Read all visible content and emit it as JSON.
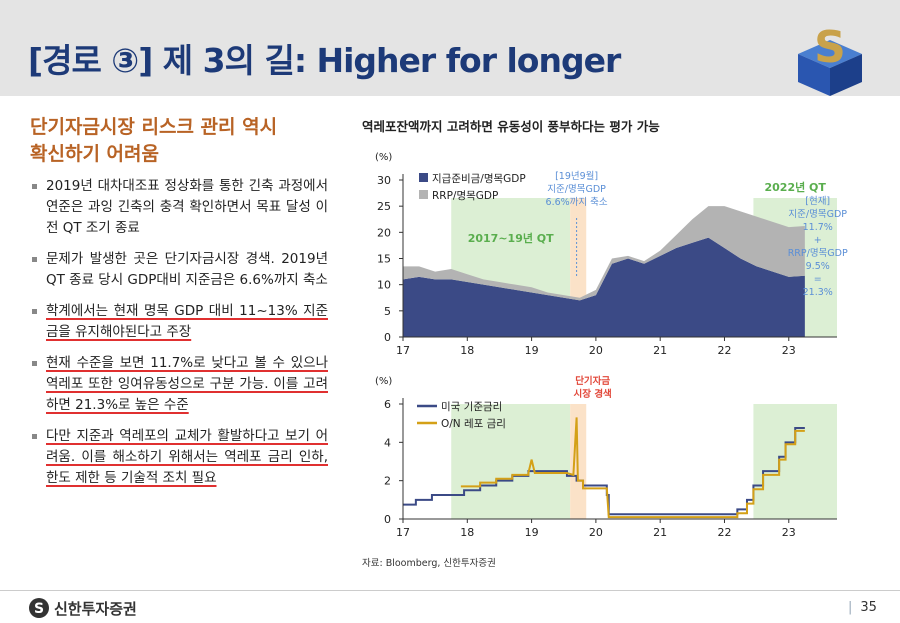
{
  "header": {
    "title": "[경로 ③] 제 3의 길: Higher for longer"
  },
  "left": {
    "heading": [
      "단기자금시장 리스크 관리 역시",
      "확신하기 어려움"
    ],
    "bullets": [
      {
        "text": "2019년 대차대조표 정상화를 통한 긴축 과정에서 연준은 과잉 긴축의 충격 확인하면서 목표 달성 이전 QT 조기 종료",
        "underline": false
      },
      {
        "text": "문제가 발생한 곳은 단기자금시장 경색. 2019년 QT 종료 당시 GDP대비 지준금은 6.6%까지 축소",
        "underline": false
      },
      {
        "text": "학계에서는 현재 명목 GDP 대비 11~13% 지준금을 유지해야된다고 주장",
        "underline": true
      },
      {
        "text": "현재 수준을 보면 11.7%로 낮다고 볼 수 있으나 역레포 또한 잉여유동성으로 구분 가능. 이를 고려하면 21.3%로 높은 수준",
        "underline": true
      },
      {
        "text": "다만 지준과 역레포의 교체가 활발하다고 보기 어려움. 이를 해소하기 위해서는 역레포 금리 인하, 한도 제한 등 기술적 조치 필요",
        "underline": true
      }
    ]
  },
  "chart_data": [
    {
      "type": "area",
      "title": "역레포잔액까지 고려하면 유동성이 풍부하다는 평가 가능",
      "y_label": "(%)",
      "x": [
        17,
        17.25,
        17.5,
        17.75,
        18,
        18.25,
        18.5,
        18.75,
        19,
        19.25,
        19.5,
        19.75,
        20,
        20.25,
        20.5,
        20.75,
        21,
        21.25,
        21.5,
        21.75,
        22,
        22.25,
        22.5,
        22.75,
        23,
        23.25
      ],
      "series": [
        {
          "name": "지급준비금/명목GDP",
          "color": "#3b4a86",
          "values": [
            11,
            11.5,
            11,
            11,
            10.5,
            10,
            9.5,
            9,
            8.5,
            8,
            7.5,
            7,
            8,
            14,
            15,
            14,
            15.5,
            17,
            18,
            19,
            17,
            15,
            13.5,
            12.5,
            11.5,
            11.7
          ]
        },
        {
          "name": "RRP/명목GDP",
          "color": "#b3b3b3",
          "values": [
            2.5,
            2,
            1.5,
            2,
            1.5,
            1,
            1,
            1,
            1,
            0.5,
            0.5,
            0.5,
            1,
            1,
            0.5,
            0.5,
            1,
            2.5,
            4.5,
            6,
            8,
            9,
            9.5,
            9.5,
            9.5,
            9.5
          ]
        }
      ],
      "stacked": true,
      "xlim": [
        17,
        23.75
      ],
      "ylim": [
        0,
        30
      ],
      "xticks": [
        17,
        18,
        19,
        20,
        21,
        22,
        23
      ],
      "yticks": [
        0,
        5,
        10,
        15,
        20,
        25,
        30
      ],
      "spans": [
        {
          "label": "2017~19년 QT",
          "range": [
            17.75,
            19.6
          ],
          "color": "#dcefd4"
        },
        {
          "range": [
            19.6,
            19.85
          ],
          "color": "#fbe2c8"
        },
        {
          "label": "2022년 QT",
          "range": [
            22.45,
            23.75
          ],
          "color": "#dcefd4"
        }
      ],
      "annotations": [
        [
          "[19년9월]",
          "지준/명목GDP",
          "6.6%까지 축소"
        ],
        [
          "[현재]",
          "지준/명목GDP",
          "11.7%",
          "+",
          "RRP/명목GDP",
          "9.5%",
          "=",
          "21.3%"
        ]
      ]
    },
    {
      "type": "line",
      "y_label": "(%)",
      "series": [
        {
          "name": "미국 기준금리",
          "color": "#3b4a86",
          "x": [
            17,
            17.2,
            17.2,
            17.45,
            17.45,
            17.95,
            17.95,
            18.2,
            18.2,
            18.45,
            18.45,
            18.7,
            18.7,
            18.95,
            18.95,
            19.55,
            19.55,
            19.7,
            19.7,
            19.8,
            19.8,
            20.17,
            20.17,
            20.2,
            20.2,
            22.2,
            22.2,
            22.35,
            22.35,
            22.45,
            22.45,
            22.6,
            22.6,
            22.85,
            22.85,
            22.95,
            22.95,
            23.1,
            23.1,
            23.25
          ],
          "values": [
            0.75,
            0.75,
            1,
            1,
            1.25,
            1.25,
            1.5,
            1.5,
            1.75,
            1.75,
            2,
            2,
            2.25,
            2.25,
            2.5,
            2.5,
            2.25,
            2.25,
            2,
            2,
            1.75,
            1.75,
            1.25,
            1.25,
            0.25,
            0.25,
            0.5,
            0.5,
            1,
            1,
            1.75,
            1.75,
            2.5,
            2.5,
            3.25,
            3.25,
            4,
            4,
            4.75,
            4.75
          ]
        },
        {
          "name": "O/N 레포 금리",
          "color": "#d4a017",
          "x": [
            17.9,
            18.2,
            18.2,
            18.45,
            18.45,
            18.7,
            18.7,
            18.95,
            18.95,
            19,
            19.05,
            19.55,
            19.65,
            19.7,
            19.72,
            19.8,
            19.8,
            20.17,
            20.2,
            22.2,
            22.2,
            22.35,
            22.35,
            22.45,
            22.45,
            22.6,
            22.6,
            22.85,
            22.85,
            22.95,
            22.95,
            23.1,
            23.1,
            23.25
          ],
          "values": [
            1.7,
            1.7,
            1.9,
            1.9,
            2.1,
            2.1,
            2.3,
            2.3,
            2.4,
            3.1,
            2.4,
            2.4,
            2.3,
            5.3,
            2,
            2,
            1.6,
            1.6,
            0.1,
            0.1,
            0.3,
            0.3,
            0.8,
            0.8,
            1.55,
            1.55,
            2.3,
            2.3,
            3.1,
            3.1,
            3.9,
            3.9,
            4.6,
            4.6
          ]
        }
      ],
      "xlim": [
        17,
        23.75
      ],
      "ylim": [
        0,
        6
      ],
      "xticks": [
        17,
        18,
        19,
        20,
        21,
        22,
        23
      ],
      "yticks": [
        0,
        2,
        4,
        6
      ],
      "spans": [
        {
          "range": [
            17.75,
            19.6
          ],
          "color": "#dcefd4"
        },
        {
          "range": [
            19.6,
            19.85
          ],
          "color": "#fbe2c8"
        },
        {
          "range": [
            22.45,
            23.75
          ],
          "color": "#dcefd4"
        }
      ],
      "annotations": [
        [
          "단기자금",
          "시장 경색"
        ]
      ]
    }
  ],
  "source": "자료: Bloomberg, 신한투자증권",
  "footer": {
    "brand": "신한투자증권",
    "page": "35"
  }
}
